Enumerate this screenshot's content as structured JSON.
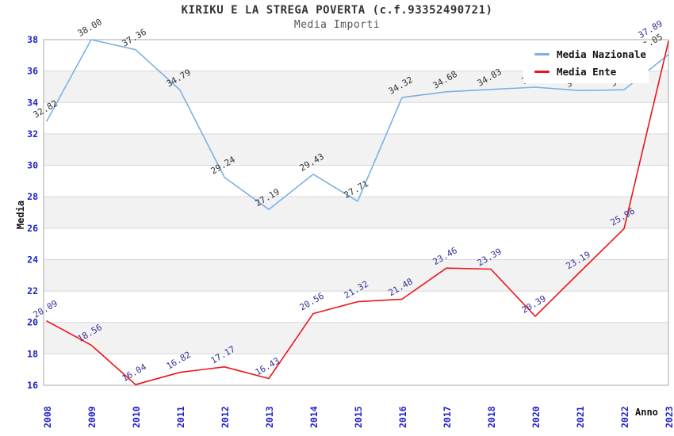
{
  "header": {
    "title": "KIRIKU E LA STREGA POVERTA (c.f.93352490721)",
    "subtitle": "Media Importi"
  },
  "legend": {
    "items": [
      {
        "label": "Media Nazionale",
        "color": "#7cb0e4"
      },
      {
        "label": "Media Ente",
        "color": "#ee1414"
      }
    ]
  },
  "styles": {
    "tick_label_color": "#1f1fcc",
    "grid_color": "#d8d8d8",
    "band_color": "#f2f2f2",
    "border_color": "#aaaaaa",
    "nazionale_line_color": "#7cb0e4",
    "ente_line_color": "#ee1414",
    "nazionale_label_color": "#333333",
    "ente_label_color": "#333399"
  },
  "chart_data": {
    "type": "line",
    "title": "KIRIKU E LA STREGA POVERTA (c.f.93352490721)",
    "subtitle": "Media Importi",
    "xlabel": "Anno",
    "ylabel": "Media",
    "categories": [
      "2008",
      "2009",
      "2010",
      "2011",
      "2012",
      "2013",
      "2014",
      "2015",
      "2016",
      "2017",
      "2018",
      "2020",
      "2021",
      "2022",
      "2023"
    ],
    "series": [
      {
        "name": "Media Nazionale",
        "color": "#7cb0e4",
        "label_color": "#333333",
        "values": [
          32.82,
          38.0,
          37.36,
          34.79,
          29.24,
          27.19,
          29.43,
          27.71,
          34.32,
          34.68,
          34.83,
          34.97,
          34.76,
          34.81,
          37.05
        ]
      },
      {
        "name": "Media Ente",
        "color": "#ee1414",
        "label_color": "#333399",
        "values": [
          20.09,
          18.56,
          16.04,
          16.82,
          17.17,
          16.43,
          20.56,
          21.32,
          21.48,
          23.46,
          23.39,
          20.39,
          23.19,
          25.96,
          37.89
        ]
      }
    ],
    "ylim": [
      16,
      38
    ],
    "y_tick_step": 2,
    "y_ticks": [
      16,
      18,
      20,
      22,
      24,
      26,
      28,
      30,
      32,
      34,
      36,
      38
    ],
    "grid": true,
    "alternating_bands": true,
    "legend_position": "top-right",
    "data_labels": true,
    "label_rotation_deg": -30
  }
}
